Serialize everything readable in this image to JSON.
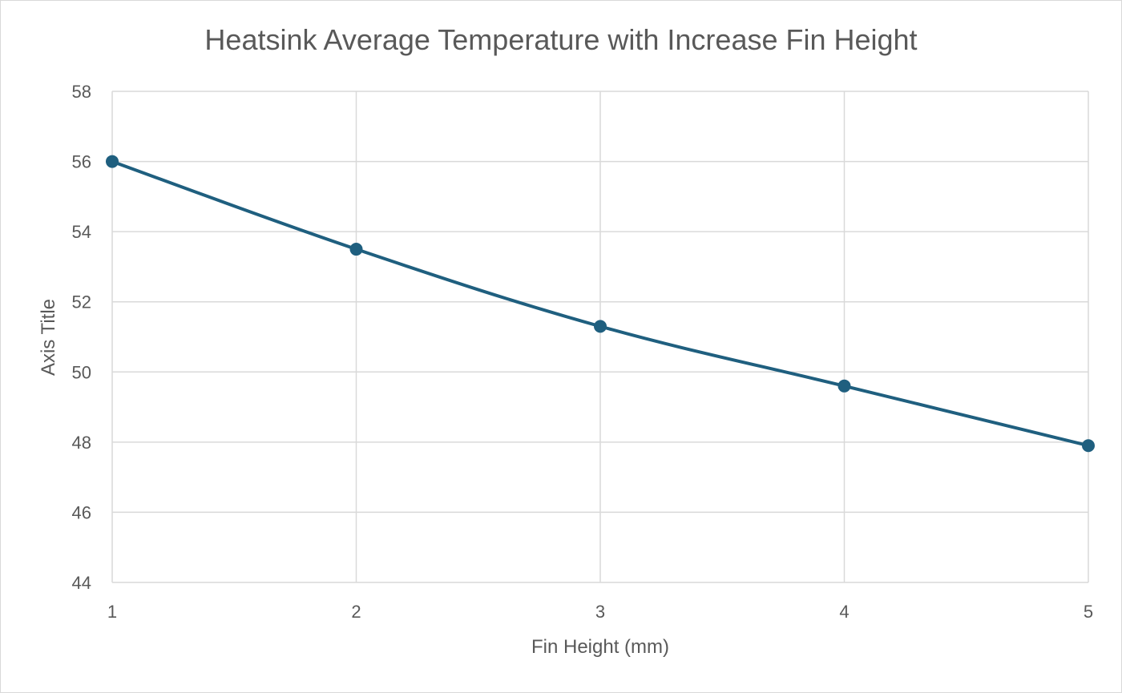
{
  "chart_data": {
    "type": "line",
    "title": "Heatsink Average Temperature with Increase Fin Height",
    "xlabel": "Fin Height (mm)",
    "ylabel": "Axis Title",
    "x": [
      1,
      2,
      3,
      4,
      5
    ],
    "series": [
      {
        "values": [
          56.0,
          53.5,
          51.3,
          49.6,
          47.9
        ],
        "color": "#1f5f7f"
      }
    ],
    "xlim": [
      1,
      5
    ],
    "ylim": [
      44,
      58
    ],
    "xticks": [
      1,
      2,
      3,
      4,
      5
    ],
    "yticks": [
      44,
      46,
      48,
      50,
      52,
      54,
      56,
      58
    ],
    "grid": true,
    "markers": true,
    "legend": "none"
  }
}
